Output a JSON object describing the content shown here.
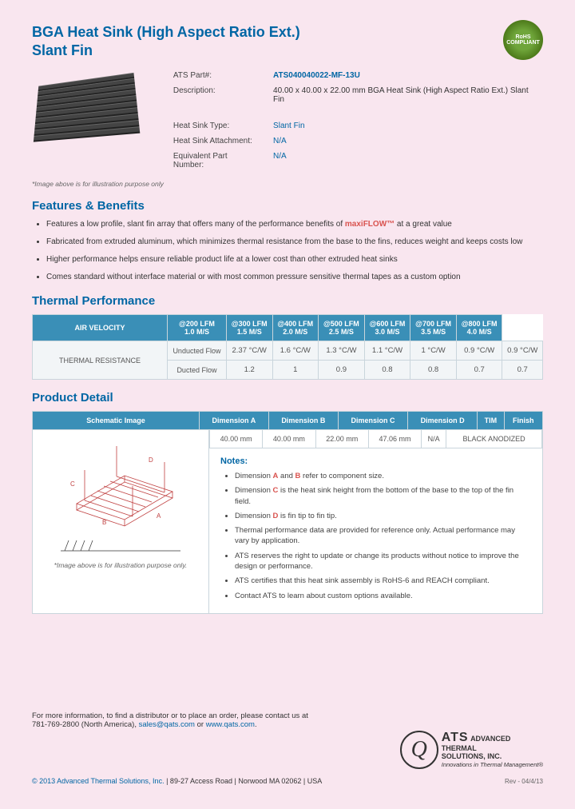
{
  "header": {
    "title1": "BGA Heat Sink (High Aspect Ratio Ext.)",
    "title2": "Slant Fin",
    "rohs": "RoHS COMPLIANT"
  },
  "specs": {
    "part_label": "ATS Part#:",
    "part_value": "ATS040040022-MF-13U",
    "desc_label": "Description:",
    "desc_value": "40.00 x 40.00 x 22.00 mm  BGA Heat Sink (High Aspect Ratio Ext.) Slant Fin",
    "type_label": "Heat Sink Type:",
    "type_value": "Slant Fin",
    "attach_label": "Heat Sink Attachment:",
    "attach_value": "N/A",
    "equiv_label": "Equivalent Part Number:",
    "equiv_value": "N/A",
    "img_caption": "*Image above is for illustration purpose only"
  },
  "features": {
    "heading": "Features & Benefits",
    "items": [
      "Features a low profile, slant fin array that offers many of the performance benefits of <span class='maxi'>maxiFLOW™</span> at a great value",
      "Fabricated from extruded aluminum, which minimizes thermal resistance from the base to the fins, reduces weight and keeps costs low",
      "Higher performance helps ensure reliable product life at a lower cost than other extruded heat sinks",
      "Comes standard without interface material or with most common pressure sensitive thermal tapes as a custom option"
    ]
  },
  "thermal": {
    "heading": "Thermal Performance",
    "rowhead": "AIR VELOCITY",
    "side": "THERMAL RESISTANCE",
    "cols": [
      {
        "a": "@200 LFM",
        "b": "1.0 M/S"
      },
      {
        "a": "@300 LFM",
        "b": "1.5 M/S"
      },
      {
        "a": "@400 LFM",
        "b": "2.0 M/S"
      },
      {
        "a": "@500 LFM",
        "b": "2.5 M/S"
      },
      {
        "a": "@600 LFM",
        "b": "3.0 M/S"
      },
      {
        "a": "@700 LFM",
        "b": "3.5 M/S"
      },
      {
        "a": "@800 LFM",
        "b": "4.0 M/S"
      }
    ],
    "r1_label": "Unducted Flow",
    "r1": [
      "2.37 °C/W",
      "1.6 °C/W",
      "1.3 °C/W",
      "1.1 °C/W",
      "1 °C/W",
      "0.9 °C/W",
      "0.9 °C/W"
    ],
    "r2_label": "Ducted Flow",
    "r2": [
      "1.2",
      "1",
      "0.9",
      "0.8",
      "0.8",
      "0.7",
      "0.7"
    ]
  },
  "detail": {
    "heading": "Product Detail",
    "schem_header": "Schematic Image",
    "schem_caption": "*Image above is for illustration purpose only.",
    "dim_headers": [
      "Dimension A",
      "Dimension B",
      "Dimension C",
      "Dimension D",
      "TIM",
      "Finish"
    ],
    "dim_values": [
      "40.00 mm",
      "40.00 mm",
      "22.00 mm",
      "47.06 mm",
      "N/A",
      "BLACK ANODIZED"
    ],
    "notes_heading": "Notes:",
    "notes": [
      "Dimension <span class='r'>A</span> and <span class='r'>B</span> refer to component size.",
      "Dimension <span class='r'>C</span> is the heat sink height from the bottom of the base to the top of the fin field.",
      "Dimension <span class='r'>D</span> is fin tip to fin tip.",
      "Thermal performance data are provided for reference only. Actual performance may vary by application.",
      "ATS reserves the right to update or change its products without notice to improve the design or performance.",
      "ATS certifies that this heat sink assembly is RoHS-6 and REACH compliant.",
      "Contact ATS to learn about custom options available."
    ]
  },
  "footer": {
    "line1": "For more information, to find a distributor or to place an order, please contact us at",
    "line2_a": "781-769-2800 (North America), ",
    "email": "sales@qats.com",
    "or": " or ",
    "url": "www.qats.com",
    "copyright_c": "© 2013 Advanced Thermal Solutions, Inc.",
    "copyright_rest": " | 89-27 Access Road | Norwood MA  02062 | USA",
    "rev": "Rev - 04/4/13",
    "logo_big": "ATS",
    "logo_l1": "ADVANCED",
    "logo_l2": "THERMAL",
    "logo_l3": "SOLUTIONS, INC.",
    "logo_tag": "Innovations in Thermal Management®"
  }
}
